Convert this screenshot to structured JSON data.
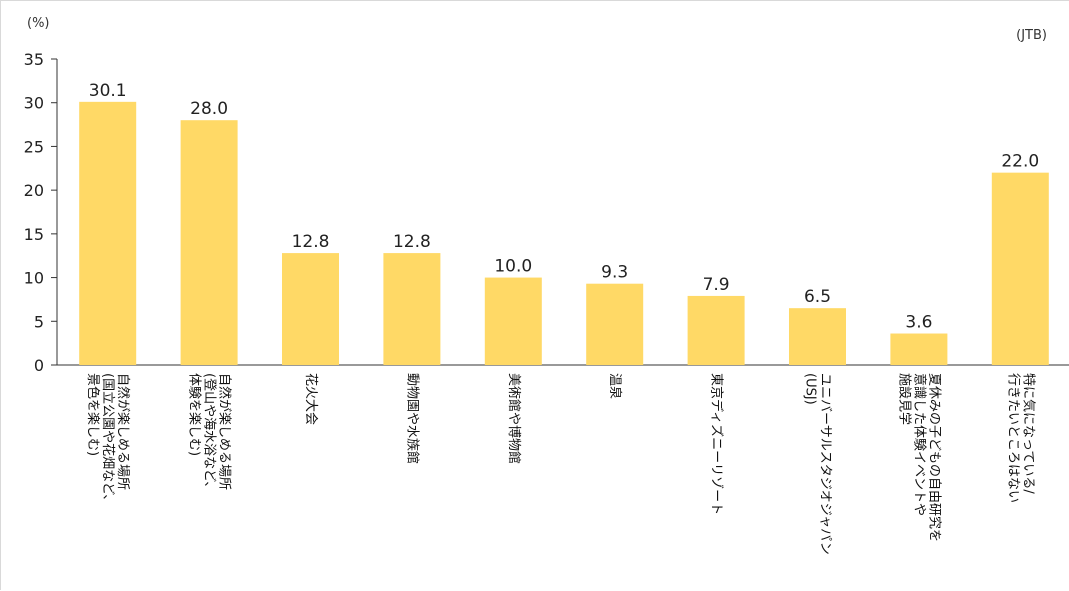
{
  "chart_data": {
    "type": "bar",
    "y_unit": "(%)",
    "source": "(JTB)",
    "ylim": [
      0,
      35
    ],
    "yticks": [
      0,
      5,
      10,
      15,
      20,
      25,
      30,
      35
    ],
    "grid": false,
    "bar_color": "#ffd966",
    "categories": [
      [
        "自然が楽しめる場所",
        "(国立公園や花畑など、",
        "景色を楽しむ)"
      ],
      [
        "自然が楽しめる場所",
        "(登山や海水浴など、",
        "体験を楽しむ)"
      ],
      [
        "花火大会"
      ],
      [
        "動物園や水族館"
      ],
      [
        "美術館や博物館"
      ],
      [
        "温泉"
      ],
      [
        "東京ディズニーリゾート"
      ],
      [
        "ユニバーサルスタジオジャパン",
        "(USJ)"
      ],
      [
        "夏休みの子どもの自由研究を",
        "意識した体験イベントや",
        "施設見学"
      ],
      [
        "特に気になっている/",
        "行きたいところはない"
      ]
    ],
    "values": [
      30.1,
      28.0,
      12.8,
      12.8,
      10.0,
      9.3,
      7.9,
      6.5,
      3.6,
      22.0
    ],
    "value_labels": [
      "30.1",
      "28.0",
      "12.8",
      "12.8",
      "10.0",
      "9.3",
      "7.9",
      "6.5",
      "3.6",
      "22.0"
    ]
  }
}
